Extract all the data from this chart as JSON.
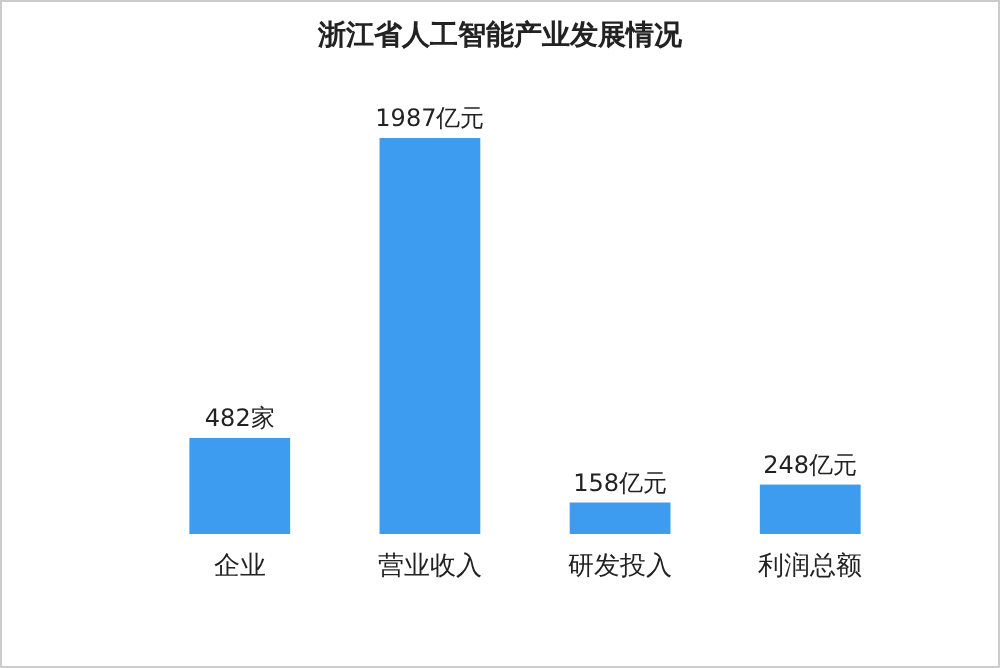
{
  "chart_data": {
    "type": "bar",
    "title": "浙江省人工智能产业发展情况",
    "categories": [
      "企业",
      "营业收入",
      "研发投入",
      "利润总额"
    ],
    "values": [
      482,
      1987,
      158,
      248
    ],
    "value_labels": [
      "482家",
      "1987亿元",
      "158亿元",
      "248亿元"
    ],
    "color": "#3d9bf0"
  }
}
